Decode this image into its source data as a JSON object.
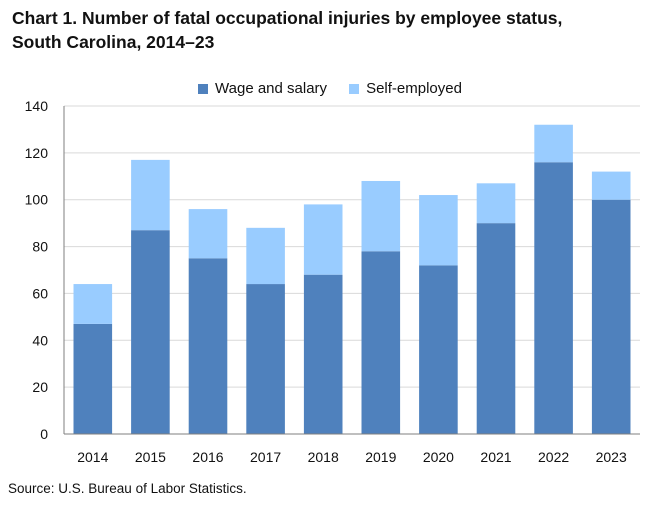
{
  "title_lines": [
    "Chart 1. Number of fatal occupational injuries by employee status,",
    "South Carolina, 2014–23"
  ],
  "source": "Source: U.S. Bureau of Labor Statistics.",
  "colors": {
    "wage_and_salary": "#4F81BD",
    "self_employed": "#99CCFF",
    "gridline": "#D9D9D9",
    "axis": "#7F7F7F"
  },
  "chart_data": {
    "type": "bar",
    "stacked": true,
    "title": "Chart 1. Number of fatal occupational injuries by employee status, South Carolina, 2014–23",
    "xlabel": "",
    "ylabel": "",
    "categories": [
      "2014",
      "2015",
      "2016",
      "2017",
      "2018",
      "2019",
      "2020",
      "2021",
      "2022",
      "2023"
    ],
    "series": [
      {
        "name": "Wage and salary",
        "values": [
          47,
          87,
          75,
          64,
          68,
          78,
          72,
          90,
          116,
          100
        ]
      },
      {
        "name": "Self-employed",
        "values": [
          17,
          30,
          21,
          24,
          30,
          30,
          30,
          17,
          16,
          12
        ]
      }
    ],
    "ylim": [
      0,
      140
    ],
    "yticks": [
      0,
      20,
      40,
      60,
      80,
      100,
      120,
      140
    ],
    "grid": true,
    "legend": "top-center"
  }
}
